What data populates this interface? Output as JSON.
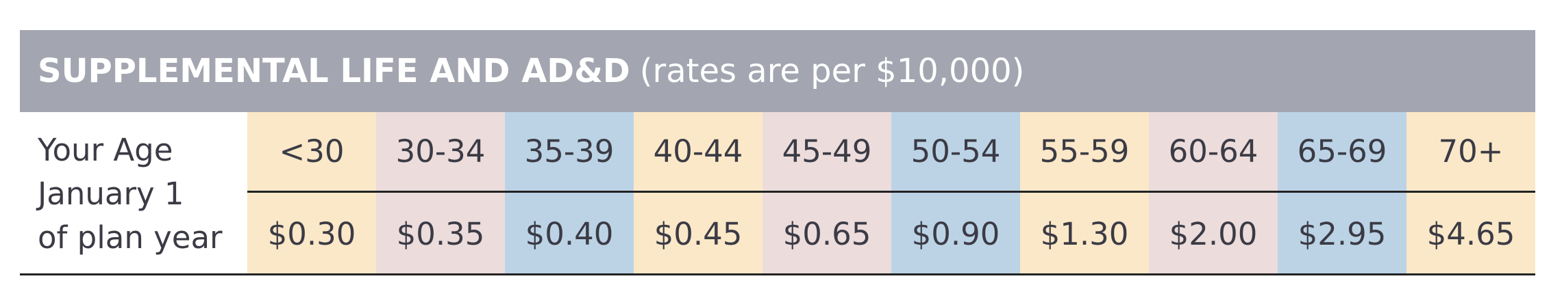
{
  "header": {
    "title": "SUPPLEMENTAL LIFE AND AD&D",
    "subtitle": "(rates are per $10,000)"
  },
  "table": {
    "row_label": [
      "Your Age",
      "January 1",
      "of plan year"
    ],
    "ages": [
      "<30",
      "30-34",
      "35-39",
      "40-44",
      "45-49",
      "50-54",
      "55-59",
      "60-64",
      "65-69",
      "70+"
    ],
    "rates": [
      "$0.30",
      "$0.35",
      "$0.40",
      "$0.45",
      "$0.65",
      "$0.90",
      "$1.30",
      "$2.00",
      "$2.95",
      "$4.65"
    ]
  }
}
